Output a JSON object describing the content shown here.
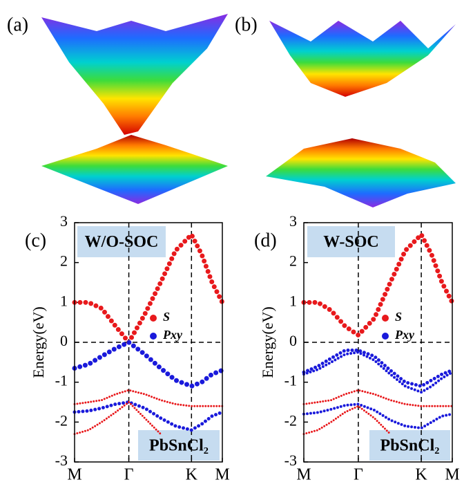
{
  "panels": {
    "a": "(a)",
    "b": "(b)"
  },
  "chart_data": [
    {
      "type": "line",
      "label": "(c)",
      "annotation": "W/O-SOC",
      "material": "PbSnCl₂",
      "y_label": "Energy(eV)",
      "x": [
        0,
        0.15,
        0.29,
        0.44,
        0.58,
        0.75,
        0.92,
        1.08,
        1.25,
        1.36,
        1.47,
        1.58
      ],
      "xlim": [
        0,
        1.58
      ],
      "xticks": [
        {
          "value": 0,
          "label": "M"
        },
        {
          "value": 0.58,
          "label": "Γ"
        },
        {
          "value": 1.25,
          "label": "K"
        },
        {
          "value": 1.58,
          "label": "M"
        }
      ],
      "ylim": [
        -3,
        3
      ],
      "yticks": [
        3,
        2,
        1,
        0,
        -1,
        -2,
        -3
      ],
      "zero_line": true,
      "legend": [
        {
          "name": "S",
          "color": "#e8191c"
        },
        {
          "name": "Pxy",
          "color": "#1a1adb"
        }
      ],
      "series": [
        {
          "color": "#e8191c",
          "width": 7,
          "values": [
            1.0,
            1.0,
            0.85,
            0.4,
            0.0,
            0.7,
            1.5,
            2.3,
            2.7,
            2.2,
            1.5,
            1.0
          ]
        },
        {
          "color": "#1a1adb",
          "width": 7,
          "values": [
            -0.65,
            -0.55,
            -0.35,
            -0.15,
            0.0,
            -0.3,
            -0.65,
            -0.95,
            -1.1,
            -1.0,
            -0.8,
            -0.7
          ]
        },
        {
          "color": "#e8191c",
          "width": 3,
          "values": [
            -1.55,
            -1.5,
            -1.45,
            -1.3,
            -1.2,
            -1.3,
            -1.45,
            -1.55,
            -1.6,
            -1.6,
            -1.6,
            -1.6
          ]
        },
        {
          "color": "#1a1adb",
          "width": 5,
          "values": [
            -1.75,
            -1.72,
            -1.65,
            -1.55,
            -1.5,
            -1.65,
            -1.9,
            -2.1,
            -2.2,
            -2.05,
            -1.85,
            -1.75
          ]
        },
        {
          "color": "#e8191c",
          "width": 3,
          "values": [
            -2.3,
            -2.2,
            -2.0,
            -1.75,
            -1.5,
            -1.9,
            -2.3,
            null,
            null,
            null,
            null,
            null
          ]
        }
      ]
    },
    {
      "type": "line",
      "label": "(d)",
      "annotation": "W-SOC",
      "material": "PbSnCl₂",
      "y_label": "Energy(eV)",
      "x": [
        0,
        0.15,
        0.29,
        0.44,
        0.58,
        0.75,
        0.92,
        1.08,
        1.25,
        1.36,
        1.47,
        1.58
      ],
      "xlim": [
        0,
        1.58
      ],
      "xticks": [
        {
          "value": 0,
          "label": "M"
        },
        {
          "value": 0.58,
          "label": "Γ"
        },
        {
          "value": 1.25,
          "label": "K"
        },
        {
          "value": 1.58,
          "label": "M"
        }
      ],
      "ylim": [
        -3,
        3
      ],
      "yticks": [
        3,
        2,
        1,
        0,
        -1,
        -2,
        -3
      ],
      "zero_line": true,
      "legend": [
        {
          "name": "S",
          "color": "#e8191c"
        },
        {
          "name": "Pxy",
          "color": "#1a1adb"
        }
      ],
      "series": [
        {
          "color": "#e8191c",
          "width": 7,
          "values": [
            1.0,
            1.0,
            0.8,
            0.4,
            0.18,
            0.6,
            1.5,
            2.3,
            2.7,
            2.2,
            1.5,
            1.0
          ]
        },
        {
          "color": "#1a1adb",
          "width": 5,
          "values": [
            -0.75,
            -0.6,
            -0.4,
            -0.2,
            -0.2,
            -0.35,
            -0.7,
            -1.0,
            -1.1,
            -0.95,
            -0.8,
            -0.7
          ]
        },
        {
          "color": "#1a1adb",
          "width": 4,
          "values": [
            -0.8,
            -0.68,
            -0.5,
            -0.3,
            -0.25,
            -0.45,
            -0.8,
            -1.1,
            -1.25,
            -1.1,
            -0.9,
            -0.75
          ]
        },
        {
          "color": "#e8191c",
          "width": 3,
          "values": [
            -1.55,
            -1.5,
            -1.45,
            -1.3,
            -1.2,
            -1.3,
            -1.45,
            -1.55,
            -1.6,
            -1.6,
            -1.6,
            -1.6
          ]
        },
        {
          "color": "#1a1adb",
          "width": 4,
          "values": [
            -1.8,
            -1.76,
            -1.68,
            -1.58,
            -1.55,
            -1.7,
            -1.95,
            -2.1,
            -2.15,
            -2.0,
            -1.85,
            -1.8
          ]
        },
        {
          "color": "#e8191c",
          "width": 3,
          "values": [
            -2.3,
            -2.2,
            -2.0,
            -1.75,
            -1.6,
            -1.9,
            -2.3,
            null,
            null,
            null,
            null,
            null
          ]
        }
      ]
    }
  ]
}
